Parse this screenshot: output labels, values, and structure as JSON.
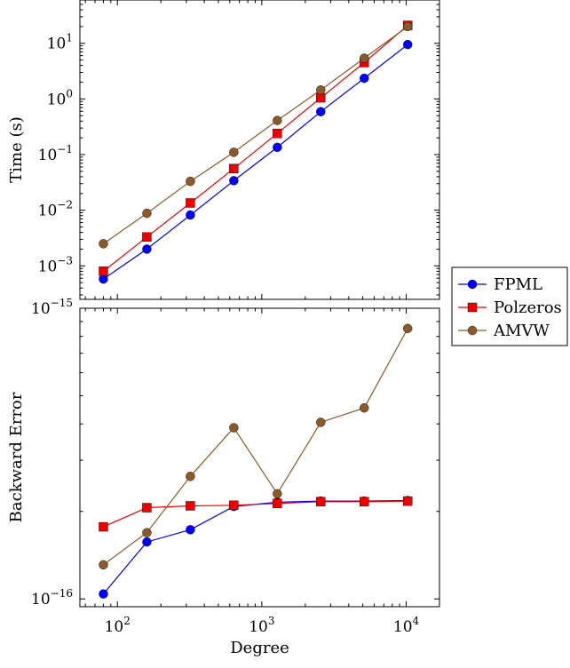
{
  "chart_data": {
    "type": "line",
    "x_scale": "log",
    "legend_placement": "right",
    "grid": false,
    "xlabel": "Degree",
    "x": [
      80,
      160,
      320,
      640,
      1280,
      2560,
      5120,
      10240
    ],
    "x_ticks": [
      {
        "value": 100,
        "base": "10",
        "exp": "2"
      },
      {
        "value": 1000,
        "base": "10",
        "exp": "3"
      },
      {
        "value": 10000,
        "base": "10",
        "exp": "4"
      }
    ],
    "series_styles": [
      {
        "name": "FPML",
        "color": "#0000ff",
        "marker": "circle"
      },
      {
        "name": "Polzeros",
        "color": "#ee0000",
        "marker": "square"
      },
      {
        "name": "AMVW",
        "color": "#8b5a2b",
        "marker": "circle"
      }
    ],
    "panels": [
      {
        "ylabel": "Time (s)",
        "y_scale": "log",
        "ylim": [
          0.00025,
          60
        ],
        "y_ticks": [
          {
            "value": 0.001,
            "base": "10",
            "exp": "−3"
          },
          {
            "value": 0.01,
            "base": "10",
            "exp": "−2"
          },
          {
            "value": 0.1,
            "base": "10",
            "exp": "−1"
          },
          {
            "value": 1,
            "base": "10",
            "exp": "0"
          },
          {
            "value": 10,
            "base": "10",
            "exp": "1"
          }
        ],
        "series": [
          {
            "name": "FPML",
            "values": [
              0.00058,
              0.002,
              0.0082,
              0.034,
              0.135,
              0.59,
              2.35,
              9.5
            ]
          },
          {
            "name": "Polzeros",
            "values": [
              0.0008,
              0.0033,
              0.0135,
              0.056,
              0.24,
              1.05,
              4.5,
              21
            ]
          },
          {
            "name": "AMVW",
            "values": [
              0.0025,
              0.0088,
              0.033,
              0.11,
              0.41,
              1.45,
              5.4,
              20
            ]
          }
        ]
      },
      {
        "ylabel": "Backward Error",
        "y_scale": "log",
        "ylim": [
          9.4e-17,
          1e-15
        ],
        "y_ticks": [
          {
            "value": 1e-15,
            "base": "10",
            "exp": "−15"
          },
          {
            "value": 1e-16,
            "base": "10",
            "exp": "−16"
          }
        ],
        "series": [
          {
            "name": "FPML",
            "values": [
              1.04e-16,
              1.57e-16,
              1.73e-16,
              2.08e-16,
              2.15e-16,
              2.17e-16,
              2.17e-16,
              2.18e-16
            ]
          },
          {
            "name": "Polzeros",
            "values": [
              1.77e-16,
              2.06e-16,
              2.09e-16,
              2.1e-16,
              2.13e-16,
              2.16e-16,
              2.16e-16,
              2.17e-16
            ]
          },
          {
            "name": "AMVW",
            "values": [
              1.31e-16,
              1.69e-16,
              2.64e-16,
              3.88e-16,
              2.3e-16,
              4.05e-16,
              4.54e-16,
              8.52e-16
            ]
          }
        ]
      }
    ]
  }
}
